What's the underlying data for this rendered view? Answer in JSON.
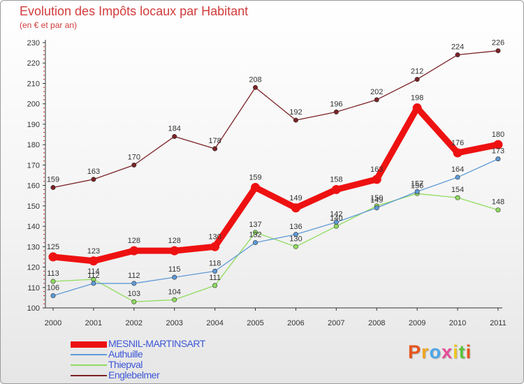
{
  "chart_data": {
    "type": "line",
    "title": "Evolution des Impôts locaux par Habitant",
    "subtitle": "(en € et par an)",
    "xlabel": "",
    "ylabel": "",
    "x": [
      "2000",
      "2001",
      "2002",
      "2003",
      "2004",
      "2005",
      "2006",
      "2007",
      "2008",
      "2009",
      "2010",
      "2011"
    ],
    "ylim": [
      100,
      230
    ],
    "yticks": [
      100,
      110,
      120,
      130,
      140,
      150,
      160,
      170,
      180,
      190,
      200,
      210,
      220,
      230
    ],
    "series": [
      {
        "name": "Englebelmer",
        "color": "#7b2226",
        "values": [
          159,
          163,
          170,
          184,
          178,
          208,
          192,
          196,
          202,
          212,
          224,
          226
        ]
      },
      {
        "name": "Thiepval",
        "color": "#8fdc5e",
        "values": [
          113,
          114,
          103,
          104,
          111,
          137,
          130,
          140,
          150,
          156,
          154,
          148
        ]
      },
      {
        "name": "Authuille",
        "color": "#5f9ad6",
        "values": [
          106,
          112,
          112,
          115,
          118,
          132,
          136,
          142,
          149,
          157,
          164,
          173
        ]
      },
      {
        "name": "MESNIL-MARTINSART",
        "color": "#ee1111",
        "values": [
          125,
          123,
          128,
          128,
          130,
          159,
          149,
          158,
          163,
          198,
          176,
          180
        ]
      }
    ],
    "legend_order": [
      "MESNIL-MARTINSART",
      "Authuille",
      "Thiepval",
      "Englebelmer"
    ],
    "grid": false,
    "legend": "bottom-left"
  },
  "brand": {
    "letters": [
      "P",
      "r",
      "o",
      "x",
      "i",
      "t",
      "i"
    ],
    "colors": [
      "#e8541c",
      "#f0a51e",
      "#4ea7e8",
      "#e84c9a",
      "#f0c41e",
      "#5cc43a",
      "#e8541c"
    ]
  }
}
